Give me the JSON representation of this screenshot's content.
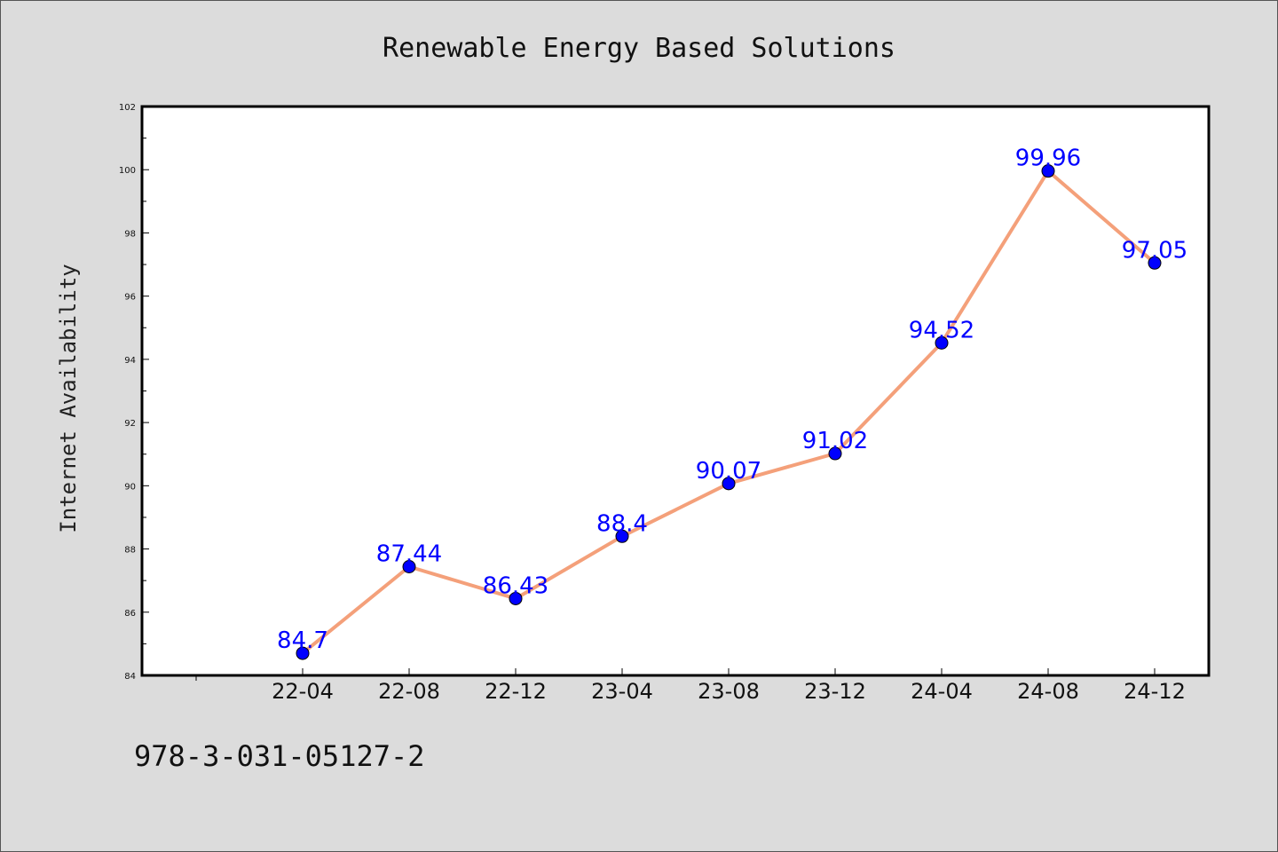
{
  "chart_data": {
    "type": "line",
    "title": "Renewable Energy Based Solutions",
    "xlabel": "",
    "ylabel": "Internet Availability",
    "categories": [
      "22-04",
      "22-08",
      "22-12",
      "23-04",
      "23-08",
      "23-12",
      "24-04",
      "24-08",
      "24-12"
    ],
    "values": [
      84.7,
      87.44,
      86.43,
      88.4,
      90.07,
      91.02,
      94.52,
      99.96,
      97.05
    ],
    "data_labels": [
      "84.7",
      "87.44",
      "86.43",
      "88.4",
      "90.07",
      "91.02",
      "94.52",
      "99.96",
      "97.05"
    ],
    "ylim": [
      84,
      102
    ],
    "yticks": [
      84,
      86,
      88,
      90,
      92,
      94,
      96,
      98,
      100,
      102
    ],
    "grid": false,
    "legend": "none",
    "line_color": "#f4a07a",
    "marker_color": "#0000ff",
    "label_color": "#0000ff"
  },
  "footer": {
    "code": "978-3-031-05127-2"
  }
}
